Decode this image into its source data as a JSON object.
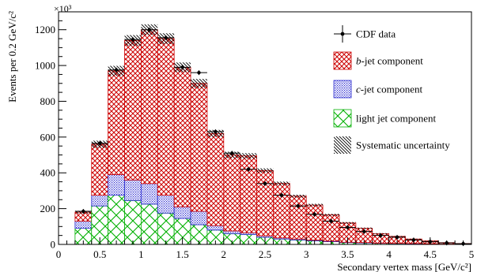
{
  "chart_data": {
    "type": "bar",
    "stacked": true,
    "title": "",
    "xlabel": "Secondary vertex mass [GeV/c²]",
    "ylabel": "Events per 0.2 GeV/c²",
    "y_multiplier": "×10³",
    "xlim": [
      0,
      5
    ],
    "ylim": [
      0,
      1300
    ],
    "x_ticks": [
      "0",
      "0.5",
      "1",
      "1.5",
      "2",
      "2.5",
      "3",
      "3.5",
      "4",
      "4.5",
      "5"
    ],
    "y_ticks": [
      "0",
      "200",
      "400",
      "600",
      "800",
      "1000",
      "1200"
    ],
    "bin_edges": [
      0.2,
      0.4,
      0.6,
      0.8,
      1.0,
      1.2,
      1.4,
      1.6,
      1.8,
      2.0,
      2.2,
      2.4,
      2.6,
      2.8,
      3.0,
      3.2,
      3.4,
      3.6,
      3.8,
      4.0,
      4.2,
      4.4,
      4.6,
      4.8,
      5.0
    ],
    "series": [
      {
        "name": "light jet component",
        "values": [
          90,
          215,
          275,
          245,
          225,
          175,
          145,
          110,
          80,
          60,
          55,
          40,
          30,
          25,
          20,
          15,
          10,
          8,
          6,
          5,
          4,
          3,
          2,
          1
        ]
      },
      {
        "name": "c-jet component",
        "values": [
          40,
          60,
          115,
          115,
          115,
          100,
          65,
          75,
          25,
          15,
          10,
          8,
          6,
          5,
          4,
          3,
          2,
          2,
          1,
          1,
          1,
          1,
          0,
          0
        ]
      },
      {
        "name": "b-jet component",
        "values": [
          50,
          285,
          580,
          780,
          860,
          875,
          780,
          715,
          515,
          425,
          430,
          365,
          305,
          240,
          196,
          147,
          108,
          80,
          53,
          39,
          25,
          16,
          8,
          4
        ]
      }
    ],
    "data_points": [
      185,
      565,
      975,
      1145,
      1200,
      1155,
      990,
      960,
      630,
      510,
      420,
      340,
      275,
      215,
      168,
      130,
      95,
      72,
      50,
      40,
      25,
      15,
      8,
      4
    ],
    "systematic_uncertainty": [
      8,
      20,
      28,
      30,
      30,
      30,
      27,
      25,
      20,
      18,
      15,
      12,
      10,
      8,
      7,
      6,
      5,
      4,
      3,
      2,
      2,
      1,
      1,
      1
    ],
    "legend": {
      "position": "top-right",
      "entries": [
        {
          "label": "CDF data",
          "prefix": "",
          "italic": "",
          "suffix": "CDF data",
          "marker": "point-with-error"
        },
        {
          "label": "b-jet component",
          "prefix": "",
          "italic": "b",
          "suffix": "-jet component",
          "marker": "red-crosshatch"
        },
        {
          "label": "c-jet component",
          "prefix": "",
          "italic": "c",
          "suffix": "-jet component",
          "marker": "blue-dots"
        },
        {
          "label": "light jet component",
          "prefix": "",
          "italic": "",
          "suffix": "light jet component",
          "marker": "green-crosshatch"
        },
        {
          "label": "Systematic uncertainty",
          "prefix": "",
          "italic": "",
          "suffix": "Systematic uncertainty",
          "marker": "black-diagonal"
        }
      ]
    },
    "colors": {
      "b": "#cc0000",
      "c": "#2a2ad0",
      "light": "#00b000",
      "syst": "#000000"
    },
    "grid": false
  }
}
